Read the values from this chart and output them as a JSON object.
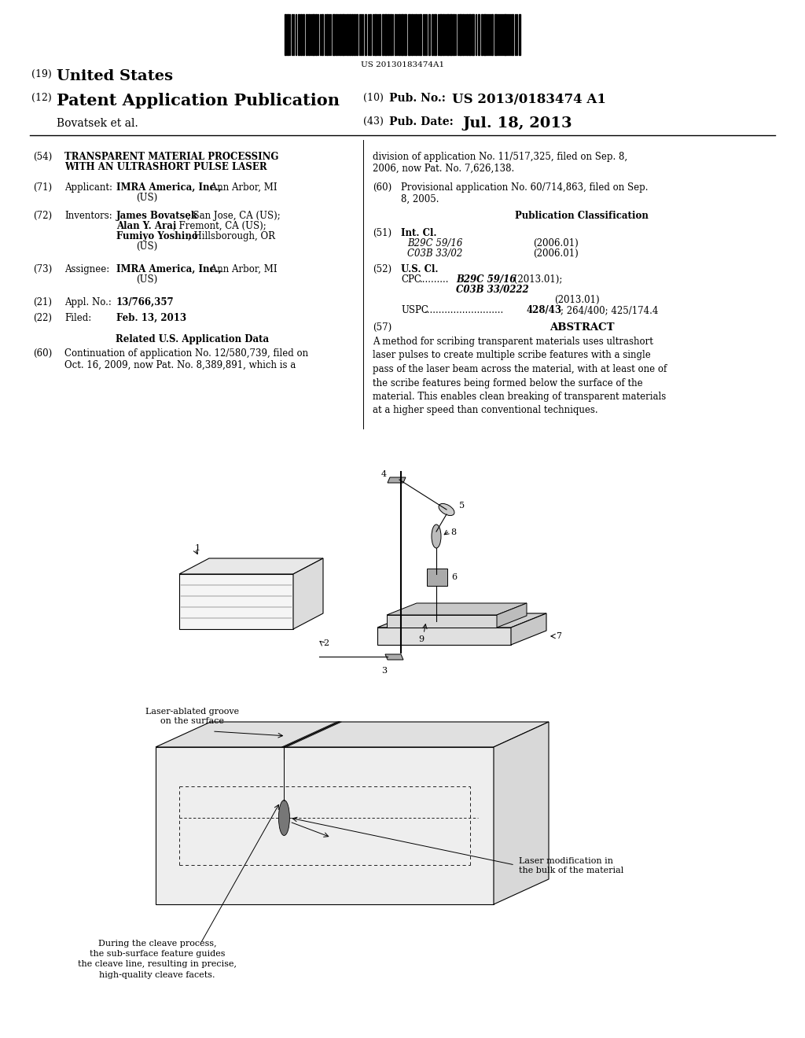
{
  "background_color": "#ffffff",
  "barcode_text": "US 20130183474A1",
  "title_19": "(19) United States",
  "title_12": "(12) Patent Application Publication",
  "author": "Bovatsek et al.",
  "pub_no_label": "(10) Pub. No.: US 2013/0183474 A1",
  "pub_date_label": "(43) Pub. Date:",
  "pub_date": "Jul. 18, 2013",
  "field54_label": "(54)",
  "field54_bold": "TRANSPARENT MATERIAL PROCESSING\nWITH AN ULTRASHORT PULSE LASER",
  "field71_label": "(71)",
  "field71_key": "Applicant:",
  "field71_bold": "IMRA America, Inc.,",
  "field71_rest": " Ann Arbor, MI\n     (US)",
  "field72_label": "(72)",
  "field72_key": "Inventors:",
  "field72_line1_bold": "James Bovatsek",
  "field72_line1_rest": ", San Jose, CA (US);",
  "field72_line2_bold": "Alan Y. Arai",
  "field72_line2_rest": ", Fremont, CA (US);",
  "field72_line3_bold": "Fumiyo Yoshino",
  "field72_line3_rest": ", Hillsborough, OR",
  "field72_line4": "(US)",
  "field73_label": "(73)",
  "field73_key": "Assignee:",
  "field73_bold": "IMRA America, Inc.,",
  "field73_rest": " Ann Arbor, MI\n     (US)",
  "field21_label": "(21)",
  "field21_key": "Appl. No.:",
  "field21_val": "13/766,357",
  "field22_label": "(22)",
  "field22_key": "Filed:",
  "field22_val": "Feb. 13, 2013",
  "related_title": "Related U.S. Application Data",
  "field60a_label": "(60)",
  "field60a_val": "Continuation of application No. 12/580,739, filed on\n      Oct. 16, 2009, now Pat. No. 8,389,891, which is a",
  "field60b_val": "division of application No. 11/517,325, filed on Sep. 8,\n2006, now Pat. No. 7,626,138.",
  "field60c_label": "(60)",
  "field60c_val": "Provisional application No. 60/714,863, filed on Sep.\n8, 2005.",
  "pub_class_title": "Publication Classification",
  "field51_label": "(51)",
  "field51_key": "Int. Cl.",
  "field51_val1": "B29C 59/16",
  "field51_val1_date": "(2006.01)",
  "field51_val2": "C03B 33/02",
  "field51_val2_date": "(2006.01)",
  "field52_label": "(52)",
  "field52_key": "U.S. Cl.",
  "field52_uspc": "USPC ........................... 428/43; 264/400; 425/174.4",
  "field57_label": "(57)",
  "field57_key": "ABSTRACT",
  "abstract": "A method for scribing transparent materials uses ultrashort\nlaser pulses to create multiple scribe features with a single\npass of the laser beam across the material, with at least one of\nthe scribe features being formed below the surface of the\nmaterial. This enables clean breaking of transparent materials\nat a higher speed than conventional techniques.",
  "diagram2_label1": "Laser-ablated groove\non the surface",
  "diagram2_label2": "Laser modification in\nthe bulk of the material",
  "diagram2_label3": "During the cleave process,\nthe sub-surface feature guides\nthe cleave line, resulting in precise,\nhigh-quality cleave facets."
}
